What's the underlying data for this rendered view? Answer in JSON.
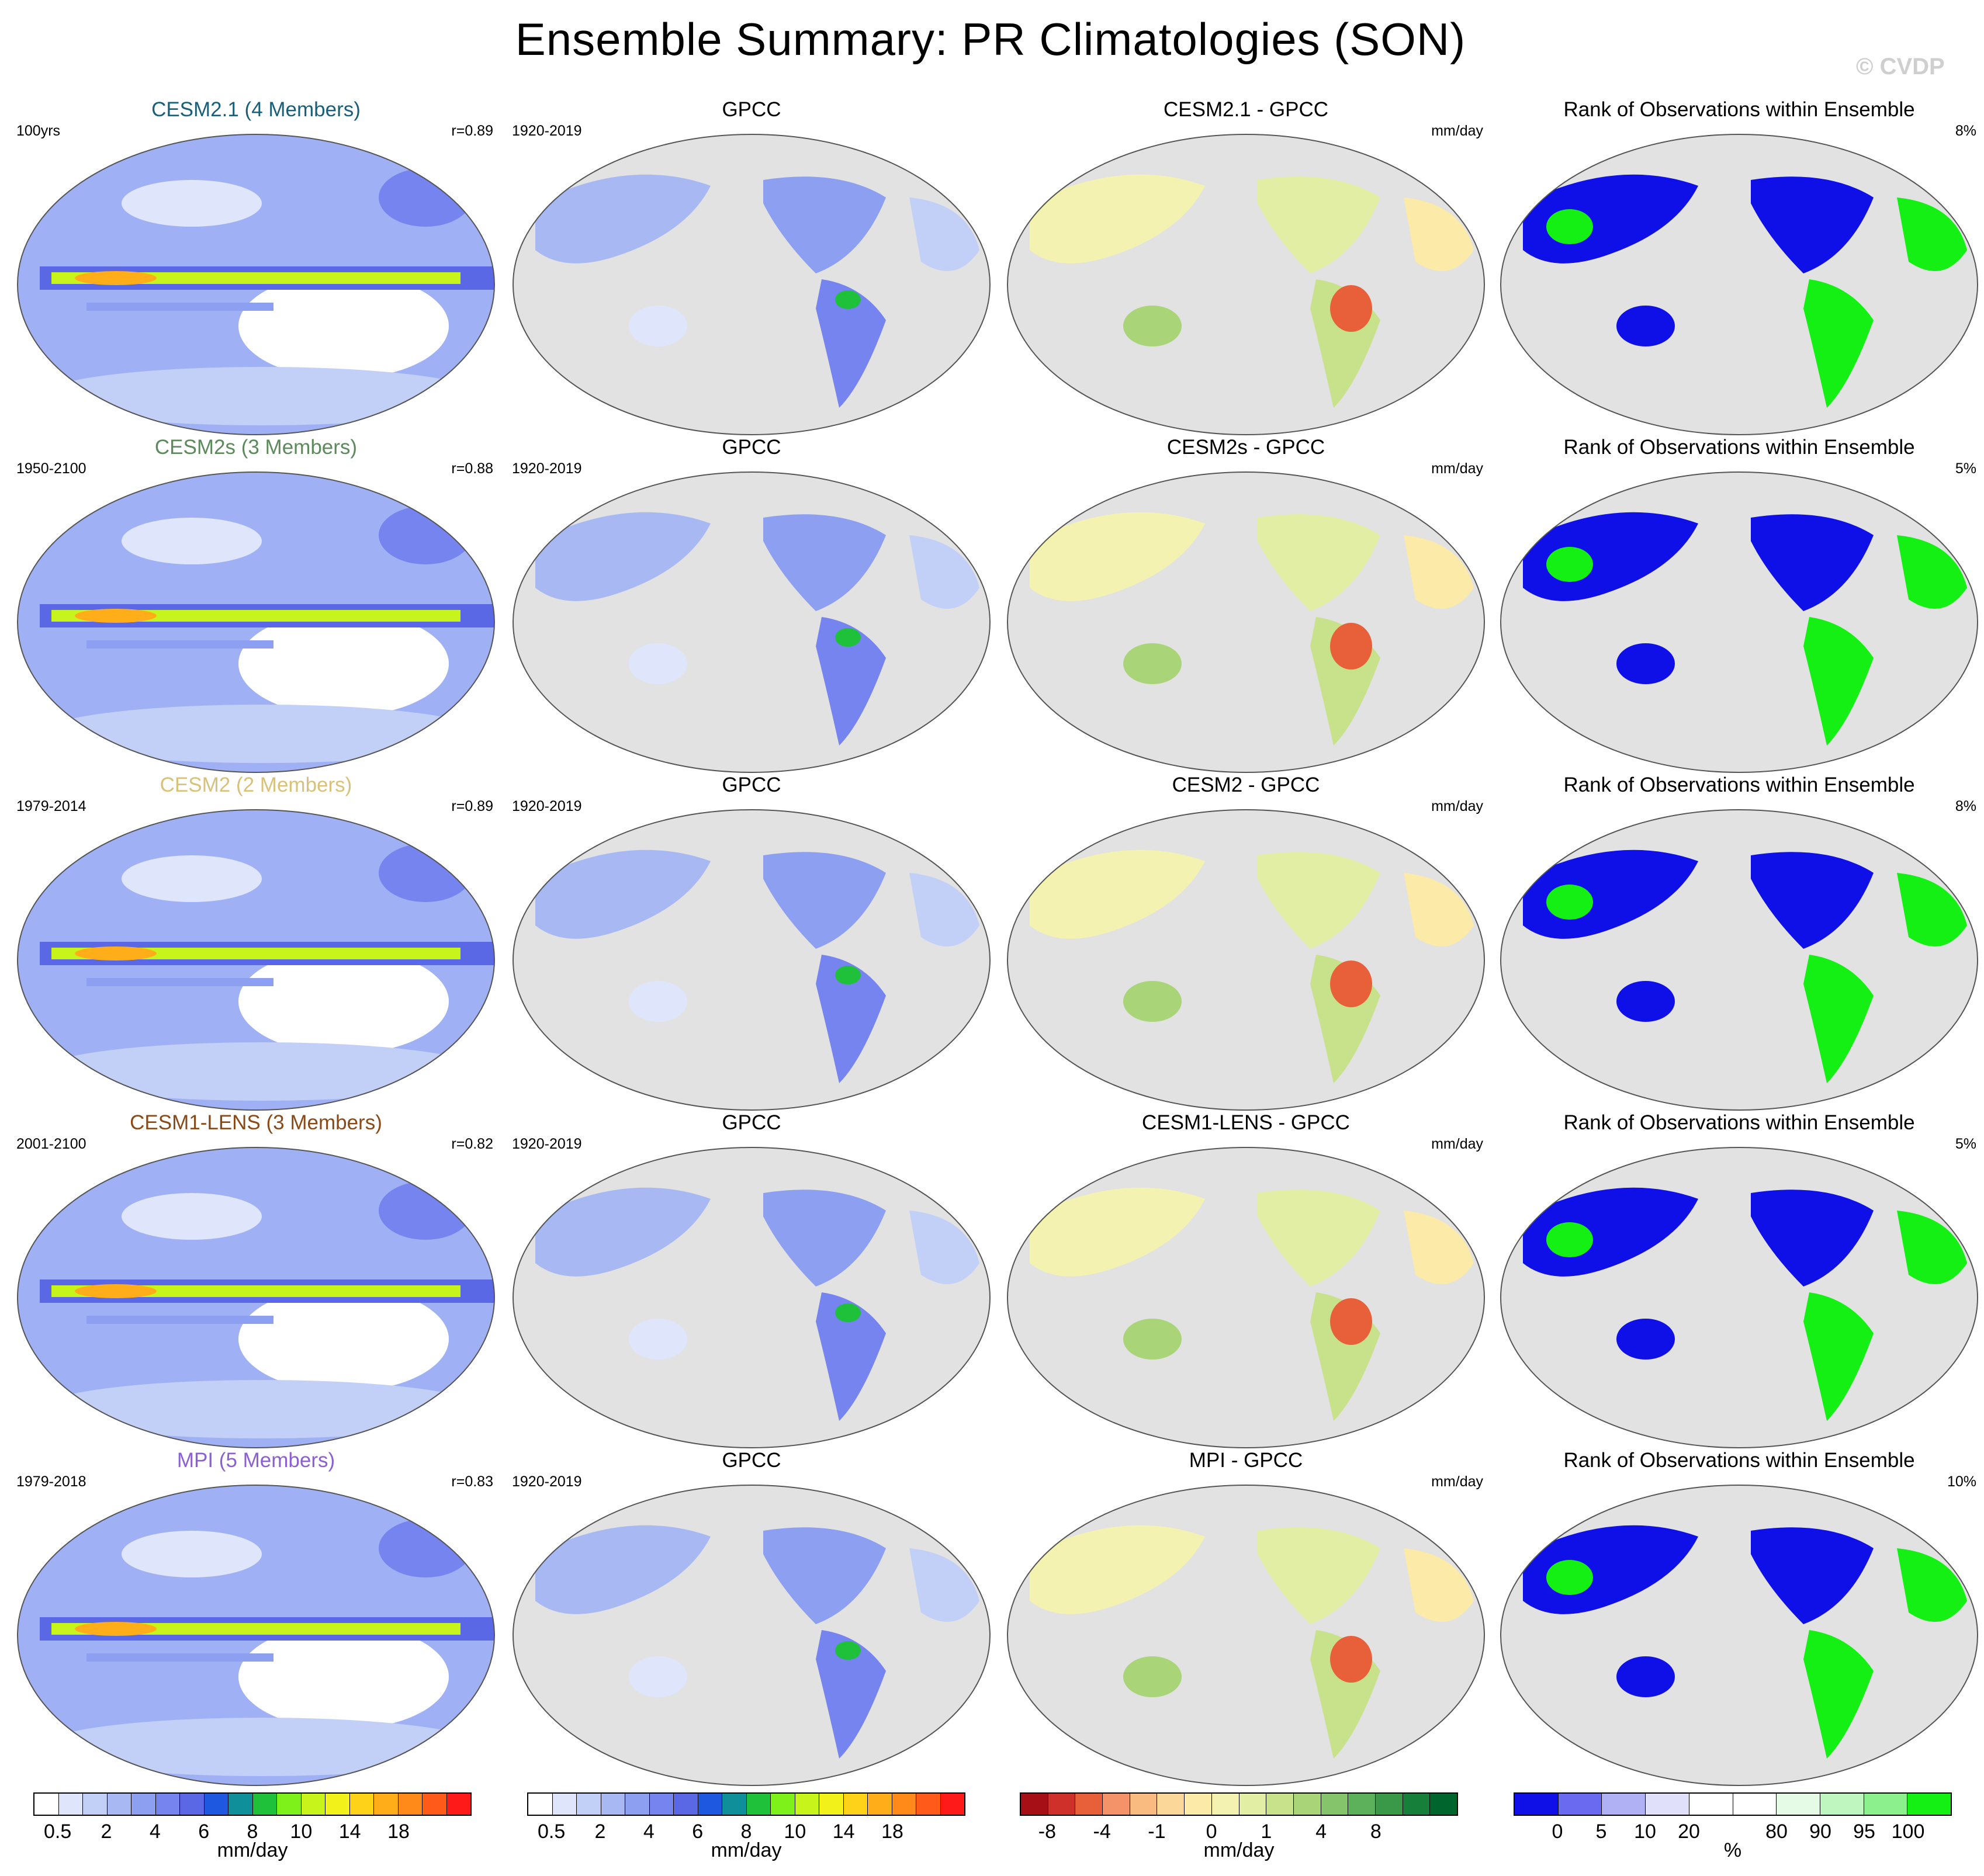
{
  "title": "Ensemble Summary: PR Climatologies (SON)",
  "watermark": "© CVDP",
  "rows": [
    {
      "model": {
        "title": "CESM2.1 (4 Members)",
        "title_color": "#1a5f7a",
        "years": "100yrs",
        "corr": "r=0.89"
      },
      "obs": {
        "title": "GPCC",
        "years": "1920-2019"
      },
      "diff": {
        "title": "CESM2.1 - GPCC",
        "units": "mm/day"
      },
      "rank": {
        "title": "Rank of Observations within Ensemble",
        "pct": "8%"
      }
    },
    {
      "model": {
        "title": "CESM2s (3 Members)",
        "title_color": "#5b8a5b",
        "years": "1950-2100",
        "corr": "r=0.88"
      },
      "obs": {
        "title": "GPCC",
        "years": "1920-2019"
      },
      "diff": {
        "title": "CESM2s - GPCC",
        "units": "mm/day"
      },
      "rank": {
        "title": "Rank of Observations within Ensemble",
        "pct": "5%"
      }
    },
    {
      "model": {
        "title": "CESM2 (2 Members)",
        "title_color": "#d8c27a",
        "years": "1979-2014",
        "corr": "r=0.89"
      },
      "obs": {
        "title": "GPCC",
        "years": "1920-2019"
      },
      "diff": {
        "title": "CESM2 - GPCC",
        "units": "mm/day"
      },
      "rank": {
        "title": "Rank of Observations within Ensemble",
        "pct": "8%"
      }
    },
    {
      "model": {
        "title": "CESM1-LENS (3 Members)",
        "title_color": "#8a4a18",
        "years": "2001-2100",
        "corr": "r=0.82"
      },
      "obs": {
        "title": "GPCC",
        "years": "1920-2019"
      },
      "diff": {
        "title": "CESM1-LENS - GPCC",
        "units": "mm/day"
      },
      "rank": {
        "title": "Rank of Observations within Ensemble",
        "pct": "5%"
      }
    },
    {
      "model": {
        "title": "MPI (5 Members)",
        "title_color": "#8b5fd6",
        "years": "1979-2018",
        "corr": "r=0.83"
      },
      "obs": {
        "title": "GPCC",
        "years": "1920-2019"
      },
      "diff": {
        "title": "MPI - GPCC",
        "units": "mm/day"
      },
      "rank": {
        "title": "Rank of Observations within Ensemble",
        "pct": "10%"
      }
    }
  ],
  "colorbars": [
    {
      "colors": [
        "#ffffff",
        "#dfe6fb",
        "#c2cff7",
        "#a7b8f3",
        "#8c9ff0",
        "#7584ee",
        "#5a68e6",
        "#1e58e0",
        "#0f8f9a",
        "#1fc03a",
        "#7ef01a",
        "#c7f41a",
        "#f2f21a",
        "#ffd21a",
        "#ffae1a",
        "#ff8a1a",
        "#ff5a1a",
        "#ff1a1a"
      ],
      "ticks": [
        [
          "0.5",
          1
        ],
        [
          "2",
          3
        ],
        [
          "4",
          5
        ],
        [
          "6",
          7
        ],
        [
          "8",
          9
        ],
        [
          "10",
          11
        ],
        [
          "14",
          13
        ],
        [
          "18",
          15
        ]
      ],
      "units": "mm/day"
    },
    {
      "colors": [
        "#ffffff",
        "#dfe6fb",
        "#c2cff7",
        "#a7b8f3",
        "#8c9ff0",
        "#7584ee",
        "#5a68e6",
        "#1e58e0",
        "#0f8f9a",
        "#1fc03a",
        "#7ef01a",
        "#c7f41a",
        "#f2f21a",
        "#ffd21a",
        "#ffae1a",
        "#ff8a1a",
        "#ff5a1a",
        "#ff1a1a"
      ],
      "ticks": [
        [
          "0.5",
          1
        ],
        [
          "2",
          3
        ],
        [
          "4",
          5
        ],
        [
          "6",
          7
        ],
        [
          "8",
          9
        ],
        [
          "10",
          11
        ],
        [
          "14",
          13
        ],
        [
          "18",
          15
        ]
      ],
      "units": "mm/day"
    },
    {
      "colors": [
        "#a50f15",
        "#d0302a",
        "#e8603a",
        "#f4926a",
        "#f9bb80",
        "#fbd89a",
        "#fbeaa8",
        "#f3f2b0",
        "#e1eea4",
        "#c7e28a",
        "#a9d477",
        "#86c46b",
        "#5eb15b",
        "#3a9948",
        "#16803a",
        "#00652c"
      ],
      "ticks": [
        [
          "-8",
          1
        ],
        [
          "-4",
          3
        ],
        [
          "-1",
          5
        ],
        [
          "0",
          7
        ],
        [
          "1",
          9
        ],
        [
          "4",
          11
        ],
        [
          "8",
          13
        ]
      ],
      "units": "mm/day"
    },
    {
      "colors": [
        "#0f0fe8",
        "#6a6af0",
        "#b0b0f5",
        "#e0e0fb",
        "#ffffff",
        "#ffffff",
        "#e6fbe6",
        "#bff5bf",
        "#8cf08c",
        "#14f014"
      ],
      "ticks": [
        [
          "0",
          1
        ],
        [
          "5",
          2
        ],
        [
          "10",
          3
        ],
        [
          "20",
          4
        ],
        [
          "80",
          6
        ],
        [
          "90",
          7
        ],
        [
          "95",
          8
        ],
        [
          "100",
          9
        ]
      ],
      "units": "%"
    }
  ]
}
